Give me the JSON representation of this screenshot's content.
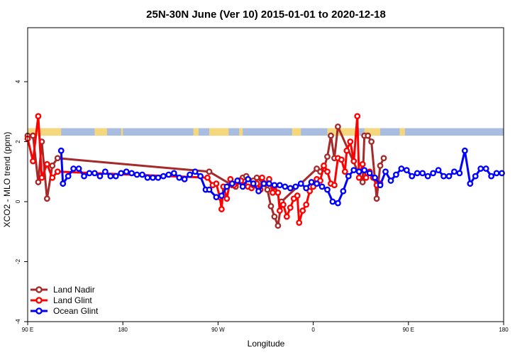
{
  "chart_data": {
    "type": "line",
    "title": "25N-30N June (Ver 10)   2015-01-01 to 2020-12-18",
    "xlabel": "Longitude",
    "ylabel": "XCO2 - MLO trend (ppm)",
    "xlim": [
      -90,
      180
    ],
    "ylim": [
      -4,
      5.8
    ],
    "x_ticks": [
      -90,
      -36,
      18,
      72,
      126,
      180
    ],
    "x_tick_labels": [
      "90 E",
      "180",
      "90 W",
      "0",
      "90 E",
      "180"
    ],
    "y_ticks": [
      -4,
      -2,
      0,
      2,
      4
    ],
    "y_tick_labels": [
      "-4",
      "-2",
      "0",
      "2",
      "4"
    ],
    "grid": false,
    "legend_position": "bottom-left",
    "land_ocean_band": {
      "y_range": [
        2.2,
        2.45
      ],
      "land_color": "#F5D77E",
      "ocean_color": "#A8BDDF",
      "land_segments": [
        [
          -90,
          -71
        ],
        [
          -52,
          -45
        ],
        [
          -37,
          -36
        ],
        [
          4,
          7
        ],
        [
          13,
          24
        ],
        [
          30,
          32
        ],
        [
          60,
          65
        ],
        [
          80,
          96
        ],
        [
          101,
          110
        ],
        [
          121,
          124
        ]
      ]
    },
    "series": [
      {
        "name": "Land Nadir",
        "color": "#A52A2A",
        "x": [
          -90,
          -87,
          -84,
          -82,
          -79,
          -76,
          -73,
          13,
          26,
          28,
          30,
          32,
          34,
          38,
          40,
          44,
          46,
          48,
          50,
          52,
          54,
          74,
          76,
          78,
          80,
          82,
          84,
          86,
          100,
          101,
          103,
          105,
          108,
          110,
          112
        ],
        "y": [
          2.2,
          2.2,
          0.65,
          2.0,
          0.1,
          1.2,
          1.45,
          1.0,
          0.55,
          0.5,
          0.7,
          0.8,
          0.85,
          0.7,
          0.8,
          0.6,
          0.4,
          -0.15,
          -0.5,
          -0.8,
          0.0,
          1.1,
          1.0,
          1.1,
          1.5,
          2.2,
          1.45,
          2.5,
          0.65,
          2.2,
          2.2,
          2.0,
          0.1,
          1.2,
          1.45
        ]
      },
      {
        "name": "Land Glint",
        "color": "#FF0000",
        "x": [
          -90,
          -87,
          -84,
          -82,
          -79,
          -76,
          -73,
          12,
          15,
          17,
          19,
          20,
          21,
          23,
          25,
          27,
          29,
          31,
          33,
          35,
          37,
          38,
          40,
          42,
          43,
          45,
          47,
          49,
          50,
          52,
          53,
          55,
          57,
          59,
          61,
          63,
          64,
          66,
          68,
          70,
          72,
          74,
          76,
          78,
          80,
          82,
          84,
          86,
          88,
          90,
          91,
          93,
          95,
          97,
          98,
          100,
          102,
          104,
          106,
          108,
          110
        ],
        "y": [
          2.1,
          1.35,
          2.85,
          0.8,
          1.25,
          0.8,
          1.0,
          0.8,
          0.55,
          0.6,
          0.15,
          -0.25,
          0.5,
          0.1,
          0.75,
          0.55,
          0.65,
          0.7,
          0.55,
          0.5,
          0.45,
          0.55,
          0.6,
          0.4,
          0.8,
          0.6,
          0.75,
          0.3,
          0.5,
          0.3,
          -0.3,
          -0.1,
          -0.5,
          -0.2,
          0.1,
          0.2,
          -0.7,
          -0.3,
          -0.1,
          0.35,
          0.5,
          0.75,
          0.7,
          1.2,
          1.0,
          0.6,
          0.55,
          1.45,
          1.4,
          1.0,
          1.7,
          2.0,
          1.35,
          2.85,
          0.8,
          1.25,
          0.8,
          1.0,
          0.8,
          0.55,
          0.6
        ]
      },
      {
        "name": "Ocean Glint",
        "color": "#0000FF",
        "x": [
          -71,
          -70,
          -67,
          -64,
          -61,
          -58,
          -55,
          -52,
          -49,
          -46,
          -43,
          -40,
          -37,
          -34,
          -31,
          -28,
          -25,
          -22,
          -19,
          -16,
          -13,
          -10,
          -7,
          -4,
          -1,
          2,
          5,
          8,
          11,
          13,
          17,
          20,
          23,
          26,
          29,
          32,
          35,
          38,
          41,
          44,
          47,
          50,
          53,
          56,
          59,
          62,
          65,
          68,
          71,
          74,
          77,
          80,
          83,
          86,
          89,
          92,
          95,
          98,
          101,
          104,
          107,
          110,
          113,
          116,
          119,
          122,
          125,
          128,
          131,
          134,
          137,
          140,
          143,
          146,
          149,
          152,
          155,
          158,
          161,
          164,
          167,
          170,
          173,
          176,
          179
        ],
        "y": [
          1.7,
          0.6,
          0.85,
          1.1,
          1.1,
          0.85,
          0.95,
          0.95,
          0.85,
          1.0,
          0.85,
          0.85,
          0.95,
          1.0,
          0.95,
          0.9,
          0.9,
          0.8,
          0.8,
          0.8,
          0.85,
          0.9,
          0.95,
          0.8,
          0.75,
          0.9,
          1.0,
          0.85,
          0.4,
          0.4,
          0.15,
          0.2,
          0.5,
          0.6,
          0.7,
          0.5,
          0.75,
          0.6,
          0.35,
          0.6,
          0.6,
          0.55,
          0.55,
          0.5,
          0.45,
          0.5,
          0.6,
          0.45,
          0.65,
          0.6,
          0.5,
          0.4,
          0.0,
          -0.05,
          0.35,
          0.85,
          1.05,
          1.0,
          1.05,
          0.95,
          0.8,
          0.55,
          1.0,
          0.7,
          0.9,
          1.1,
          1.05,
          0.85,
          0.95,
          0.95,
          0.85,
          0.95,
          1.05,
          0.85,
          0.85,
          1.0,
          0.95,
          1.7,
          0.6,
          0.85,
          1.1,
          1.1,
          0.85,
          0.95,
          0.95
        ]
      }
    ]
  }
}
